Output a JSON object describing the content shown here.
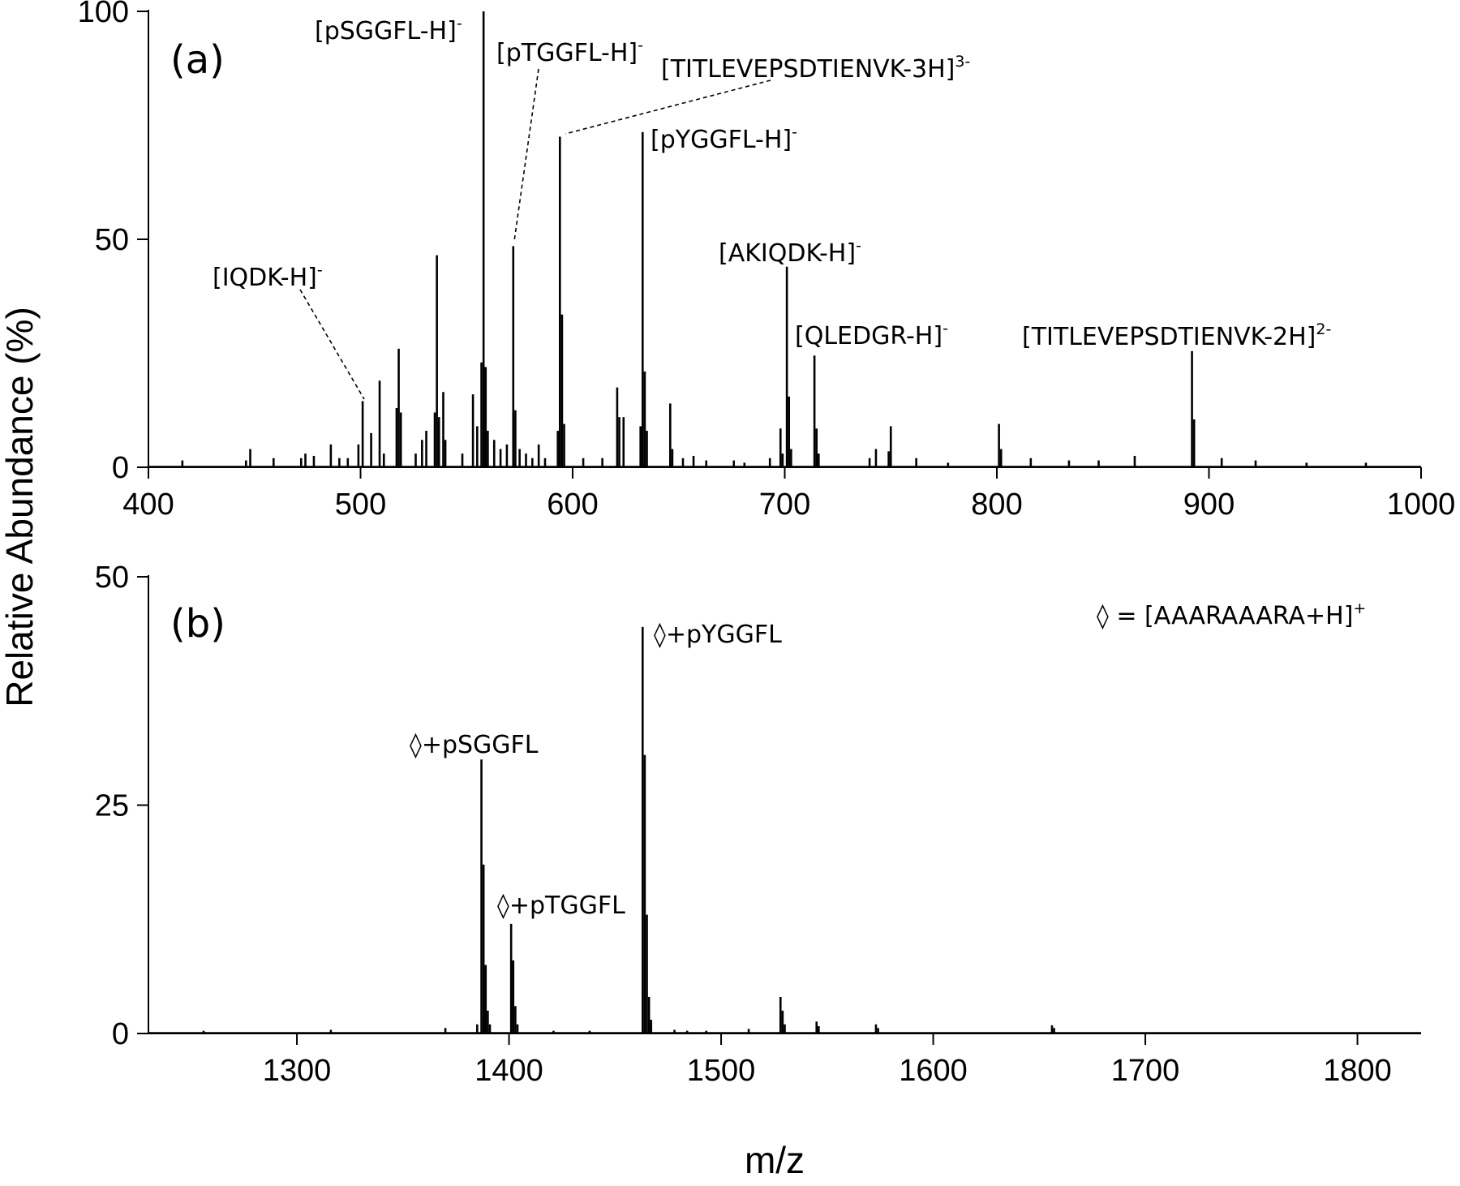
{
  "figure": {
    "ylabel": "Relative Abundance (%)",
    "xlabel": "m/z",
    "colors": {
      "axis": "#000000",
      "spectrum": "#000000",
      "leader": "#000000"
    }
  },
  "chart_data": [
    {
      "type": "bar",
      "panel_label": "(a)",
      "xlim": [
        400,
        1000
      ],
      "ylim": [
        0,
        100
      ],
      "xticks": [
        "400",
        "500",
        "600",
        "700",
        "800",
        "900",
        "1000"
      ],
      "yticks": [
        "0",
        "50",
        "100"
      ],
      "xlabel": "",
      "ylabel": "Relative Abundance (%)",
      "peaks": [
        {
          "x": 416,
          "y": 1.5
        },
        {
          "x": 446,
          "y": 1.5
        },
        {
          "x": 448,
          "y": 4
        },
        {
          "x": 459,
          "y": 2
        },
        {
          "x": 472,
          "y": 2
        },
        {
          "x": 474,
          "y": 3
        },
        {
          "x": 478,
          "y": 2.5
        },
        {
          "x": 486,
          "y": 5
        },
        {
          "x": 490,
          "y": 2
        },
        {
          "x": 494,
          "y": 2
        },
        {
          "x": 499,
          "y": 5
        },
        {
          "x": 501,
          "y": 14.5
        },
        {
          "x": 505,
          "y": 7.5
        },
        {
          "x": 509,
          "y": 19
        },
        {
          "x": 511,
          "y": 3
        },
        {
          "x": 517,
          "y": 13
        },
        {
          "x": 518,
          "y": 26
        },
        {
          "x": 519,
          "y": 12
        },
        {
          "x": 526,
          "y": 3
        },
        {
          "x": 529,
          "y": 6
        },
        {
          "x": 531,
          "y": 8
        },
        {
          "x": 535,
          "y": 12
        },
        {
          "x": 536,
          "y": 46.5
        },
        {
          "x": 537,
          "y": 11
        },
        {
          "x": 539,
          "y": 16.5
        },
        {
          "x": 540,
          "y": 6
        },
        {
          "x": 548,
          "y": 3
        },
        {
          "x": 553,
          "y": 16
        },
        {
          "x": 555,
          "y": 9
        },
        {
          "x": 557,
          "y": 23
        },
        {
          "x": 558,
          "y": 100
        },
        {
          "x": 559,
          "y": 22
        },
        {
          "x": 560,
          "y": 8
        },
        {
          "x": 563,
          "y": 6
        },
        {
          "x": 566,
          "y": 4
        },
        {
          "x": 569,
          "y": 5
        },
        {
          "x": 572,
          "y": 48.5
        },
        {
          "x": 573,
          "y": 12.5
        },
        {
          "x": 575,
          "y": 4
        },
        {
          "x": 578,
          "y": 3
        },
        {
          "x": 581,
          "y": 2
        },
        {
          "x": 584,
          "y": 5
        },
        {
          "x": 587,
          "y": 2
        },
        {
          "x": 593,
          "y": 8
        },
        {
          "x": 594,
          "y": 72.5
        },
        {
          "x": 595,
          "y": 33.5
        },
        {
          "x": 596,
          "y": 9.5
        },
        {
          "x": 605,
          "y": 2
        },
        {
          "x": 614,
          "y": 2
        },
        {
          "x": 621,
          "y": 17.5
        },
        {
          "x": 622,
          "y": 11
        },
        {
          "x": 624,
          "y": 11
        },
        {
          "x": 632,
          "y": 9
        },
        {
          "x": 633,
          "y": 73.5
        },
        {
          "x": 634,
          "y": 21
        },
        {
          "x": 635,
          "y": 8
        },
        {
          "x": 646,
          "y": 14
        },
        {
          "x": 647,
          "y": 4
        },
        {
          "x": 652,
          "y": 2
        },
        {
          "x": 657,
          "y": 2.5
        },
        {
          "x": 663,
          "y": 1.5
        },
        {
          "x": 676,
          "y": 1.5
        },
        {
          "x": 681,
          "y": 1
        },
        {
          "x": 693,
          "y": 2
        },
        {
          "x": 698,
          "y": 8.5
        },
        {
          "x": 699,
          "y": 3
        },
        {
          "x": 701,
          "y": 44
        },
        {
          "x": 702,
          "y": 15.5
        },
        {
          "x": 703,
          "y": 4
        },
        {
          "x": 714,
          "y": 24.5
        },
        {
          "x": 715,
          "y": 8.5
        },
        {
          "x": 716,
          "y": 3
        },
        {
          "x": 740,
          "y": 2
        },
        {
          "x": 743,
          "y": 4
        },
        {
          "x": 749,
          "y": 3.5
        },
        {
          "x": 750,
          "y": 9
        },
        {
          "x": 762,
          "y": 2
        },
        {
          "x": 777,
          "y": 1
        },
        {
          "x": 801,
          "y": 9.5
        },
        {
          "x": 802,
          "y": 4
        },
        {
          "x": 816,
          "y": 2
        },
        {
          "x": 834,
          "y": 1.5
        },
        {
          "x": 848,
          "y": 1.5
        },
        {
          "x": 865,
          "y": 2.5
        },
        {
          "x": 892,
          "y": 25.5
        },
        {
          "x": 893,
          "y": 10.5
        },
        {
          "x": 906,
          "y": 2
        },
        {
          "x": 922,
          "y": 1.5
        },
        {
          "x": 946,
          "y": 1
        },
        {
          "x": 974,
          "y": 1
        }
      ],
      "annotations": [
        {
          "id": "iqdk",
          "text": "[IQDK-H]",
          "sup": "-"
        },
        {
          "id": "psggfl",
          "text": "[pSGGFL-H]",
          "sup": "-"
        },
        {
          "id": "ptggfl",
          "text": "[pTGGFL-H]",
          "sup": "-"
        },
        {
          "id": "titlev3",
          "text": "[TITLEVEPSDTIENVK-3H]",
          "sup": "3-"
        },
        {
          "id": "pyggfl",
          "text": "[pYGGFL-H]",
          "sup": "-"
        },
        {
          "id": "akiqdk",
          "text": "[AKIQDK-H]",
          "sup": "-"
        },
        {
          "id": "qledgr",
          "text": "[QLEDGR-H]",
          "sup": "-"
        },
        {
          "id": "titlev2",
          "text": "[TITLEVEPSDTIENVK-2H]",
          "sup": "2-"
        }
      ]
    },
    {
      "type": "bar",
      "panel_label": "(b)",
      "xlim": [
        1230,
        1830
      ],
      "ylim": [
        0,
        50
      ],
      "xticks": [
        "1300",
        "1400",
        "1500",
        "1600",
        "1700",
        "1800"
      ],
      "yticks": [
        "0",
        "25",
        "50"
      ],
      "xlabel": "m/z",
      "ylabel": "Relative Abundance (%)",
      "legend_note": {
        "text": "◊ = [AAARAAARA+H]",
        "sup": "+"
      },
      "peaks": [
        {
          "x": 1256,
          "y": 0.3
        },
        {
          "x": 1316,
          "y": 0.4
        },
        {
          "x": 1370,
          "y": 0.6
        },
        {
          "x": 1385,
          "y": 1
        },
        {
          "x": 1387,
          "y": 30
        },
        {
          "x": 1388,
          "y": 18.5
        },
        {
          "x": 1389,
          "y": 7.5
        },
        {
          "x": 1390,
          "y": 2.5
        },
        {
          "x": 1391,
          "y": 1
        },
        {
          "x": 1401,
          "y": 12
        },
        {
          "x": 1402,
          "y": 8
        },
        {
          "x": 1403,
          "y": 3
        },
        {
          "x": 1404,
          "y": 1
        },
        {
          "x": 1421,
          "y": 0.3
        },
        {
          "x": 1438,
          "y": 0.3
        },
        {
          "x": 1463,
          "y": 44.5
        },
        {
          "x": 1464,
          "y": 30.5
        },
        {
          "x": 1465,
          "y": 13
        },
        {
          "x": 1466,
          "y": 4
        },
        {
          "x": 1467,
          "y": 1.5
        },
        {
          "x": 1478,
          "y": 0.4
        },
        {
          "x": 1484,
          "y": 0.3
        },
        {
          "x": 1493,
          "y": 0.3
        },
        {
          "x": 1513,
          "y": 0.5
        },
        {
          "x": 1528,
          "y": 4
        },
        {
          "x": 1529,
          "y": 2.5
        },
        {
          "x": 1530,
          "y": 1
        },
        {
          "x": 1545,
          "y": 1.3
        },
        {
          "x": 1546,
          "y": 0.8
        },
        {
          "x": 1573,
          "y": 1
        },
        {
          "x": 1574,
          "y": 0.6
        },
        {
          "x": 1656,
          "y": 0.9
        },
        {
          "x": 1657,
          "y": 0.6
        }
      ],
      "annotations": [
        {
          "id": "d-psggfl",
          "text": "◊+pSGGFL",
          "sup": ""
        },
        {
          "id": "d-ptggfl",
          "text": "◊+pTGGFL",
          "sup": ""
        },
        {
          "id": "d-pyggfl",
          "text": "◊+pYGGFL",
          "sup": ""
        }
      ]
    }
  ]
}
